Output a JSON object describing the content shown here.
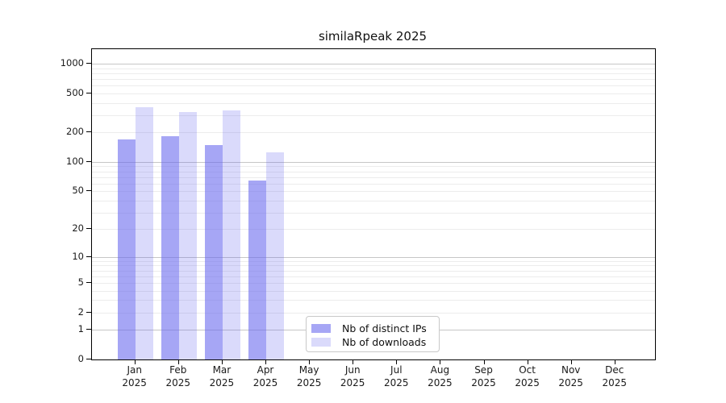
{
  "figure": {
    "background": "#ffffff"
  },
  "chart_data": {
    "type": "bar",
    "title": "similaRpeak 2025",
    "categories": [
      "Jan",
      "Feb",
      "Mar",
      "Apr",
      "May",
      "Jun",
      "Jul",
      "Aug",
      "Sep",
      "Oct",
      "Nov",
      "Dec"
    ],
    "x_tick_year": "2025",
    "series": [
      {
        "name": "Nb of distinct IPs",
        "base_color": "#6666ee",
        "fill_alpha": 0.58,
        "legend_hex": "#a6a6f5",
        "values": [
          170,
          182,
          150,
          65,
          0,
          0,
          0,
          0,
          0,
          0,
          0,
          0
        ]
      },
      {
        "name": "Nb of downloads",
        "base_color": "#6666ee",
        "fill_alpha": 0.24,
        "legend_hex": "#dadafb",
        "values": [
          360,
          323,
          333,
          126,
          0,
          0,
          0,
          0,
          0,
          0,
          0,
          0
        ]
      }
    ],
    "yscale": "log1p",
    "ylim": [
      0,
      1405
    ],
    "y_ticks": [
      1000,
      500,
      200,
      100,
      50,
      20,
      10,
      5,
      2,
      1,
      0
    ],
    "grid": {
      "on": true,
      "minor_color": "#ececec",
      "major_color": "#c6c6c6",
      "major_at": [
        1,
        10,
        100,
        1000
      ]
    },
    "legend": {
      "position": "bottom-center-left",
      "border_color": "#c9c9c9"
    }
  }
}
